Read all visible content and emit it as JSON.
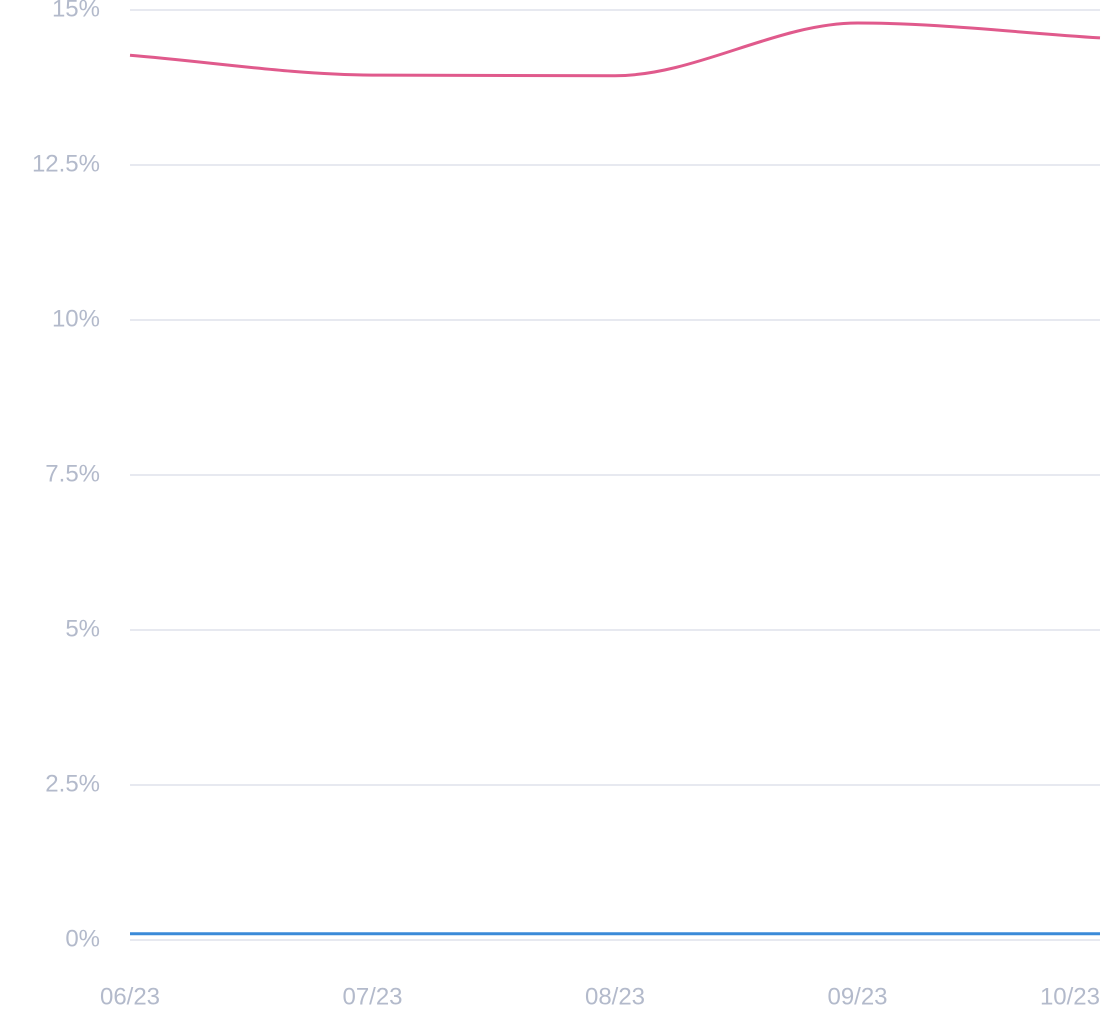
{
  "chart_data": {
    "type": "line",
    "categories": [
      "06/23",
      "07/23",
      "08/23",
      "09/23",
      "10/23"
    ],
    "series": [
      {
        "color": "#e05a8c",
        "values": [
          14.27,
          13.95,
          13.94,
          14.79,
          14.55
        ]
      },
      {
        "color": "#3a8ad8",
        "values": [
          0.1,
          0.1,
          0.1,
          0.1,
          0.1
        ]
      }
    ],
    "ylim": [
      0,
      15
    ],
    "yticks": [
      {
        "value": 0,
        "label": "0%"
      },
      {
        "value": 2.5,
        "label": "2.5%"
      },
      {
        "value": 5,
        "label": "5%"
      },
      {
        "value": 7.5,
        "label": "7.5%"
      },
      {
        "value": 10,
        "label": "10%"
      },
      {
        "value": 12.5,
        "label": "12.5%"
      },
      {
        "value": 15,
        "label": "15%"
      }
    ],
    "grid": true
  }
}
